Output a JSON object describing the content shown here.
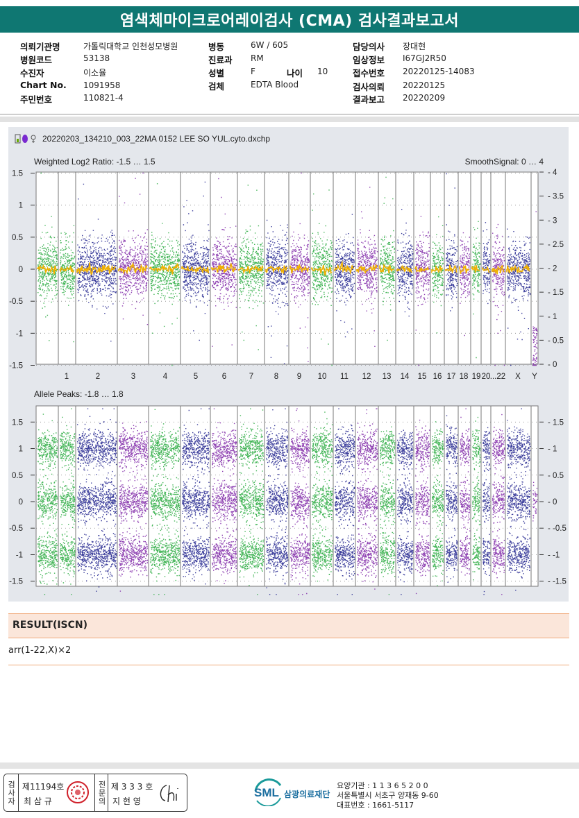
{
  "title": "염색체마이크로어레이검사 (CMA) 검사결과보고서",
  "info": {
    "col1": [
      {
        "label": "의뢰기관명",
        "value": "가톨릭대학교 인천성모병원"
      },
      {
        "label": "병원코드",
        "value": "53138"
      },
      {
        "label": "수진자",
        "value": "이소율"
      },
      {
        "label": "Chart No.",
        "value": "1091958"
      },
      {
        "label": "주민번호",
        "value": "110821-4"
      }
    ],
    "col2": [
      {
        "label": "병동",
        "value": "6W / 605"
      },
      {
        "label": "진료과",
        "value": "RM"
      },
      {
        "label": "성별",
        "value": "F"
      },
      {
        "label": "검체",
        "value": "EDTA Blood"
      }
    ],
    "age": {
      "label": "나이",
      "value": "10"
    },
    "col3": [
      {
        "label": "담당의사",
        "value": "장대현"
      },
      {
        "label": "임상정보",
        "value": "I67GJ2R50"
      },
      {
        "label": "접수번호",
        "value": "20220125-14083"
      },
      {
        "label": "검사의뢰",
        "value": "20220125"
      },
      {
        "label": "결과보고",
        "value": "20220209"
      }
    ]
  },
  "plot": {
    "filename": "20220203_134210_003_22MA 0152 LEE SO YUL.cyto.dxchp",
    "top_label": "Weighted Log2 Ratio: -1.5 … 1.5",
    "top_right_label": "SmoothSignal: 0 … 4",
    "top_left_ticks": [
      "1.5",
      "1",
      "0.5",
      "0",
      "-0.5",
      "-1",
      "-1.5"
    ],
    "top_right_ticks": [
      "4",
      "3.5",
      "3",
      "2.5",
      "2",
      "1.5",
      "1",
      "0.5",
      "0"
    ],
    "chromosomes": [
      "1",
      "2",
      "3",
      "4",
      "5",
      "6",
      "7",
      "8",
      "9",
      "10",
      "11",
      "12",
      "13",
      "14",
      "15",
      "16",
      "17",
      "18",
      "19",
      "20",
      "...22",
      "X",
      "Y"
    ],
    "bottom_label": "Allele Peaks: -1.8 … 1.8",
    "bottom_left_ticks": [
      "1.5",
      "1",
      "0.5",
      "0",
      "-0.5",
      "-1",
      "-1.5"
    ],
    "bottom_right_ticks": [
      "1.5",
      "1",
      "0.5",
      "0",
      "-0.5",
      "-1",
      "-1.5"
    ],
    "colors": {
      "green": "#22a83a",
      "navy": "#1c1f8c",
      "purple": "#7d23a6",
      "smooth": "#f0b000"
    }
  },
  "result": {
    "title": "RESULT(ISCN)",
    "text": "arr(1-22,X)×2"
  },
  "footer": {
    "examiner_label": "검사자",
    "examiner_no": "제11194호",
    "examiner_name": "최 삼 규",
    "specialist_label": "전문의",
    "specialist_no": "제 3 3 3 호",
    "specialist_name": "지 현 영",
    "logo_text": "SML",
    "org_name": "삼광의료재단",
    "addr_line1": "요양기관 : 1 1 3 6 5 2 0 0",
    "addr_line2": "서울특별시 서초구 양재동 9-60",
    "addr_line3": "대표번호 : 1661-5117"
  }
}
